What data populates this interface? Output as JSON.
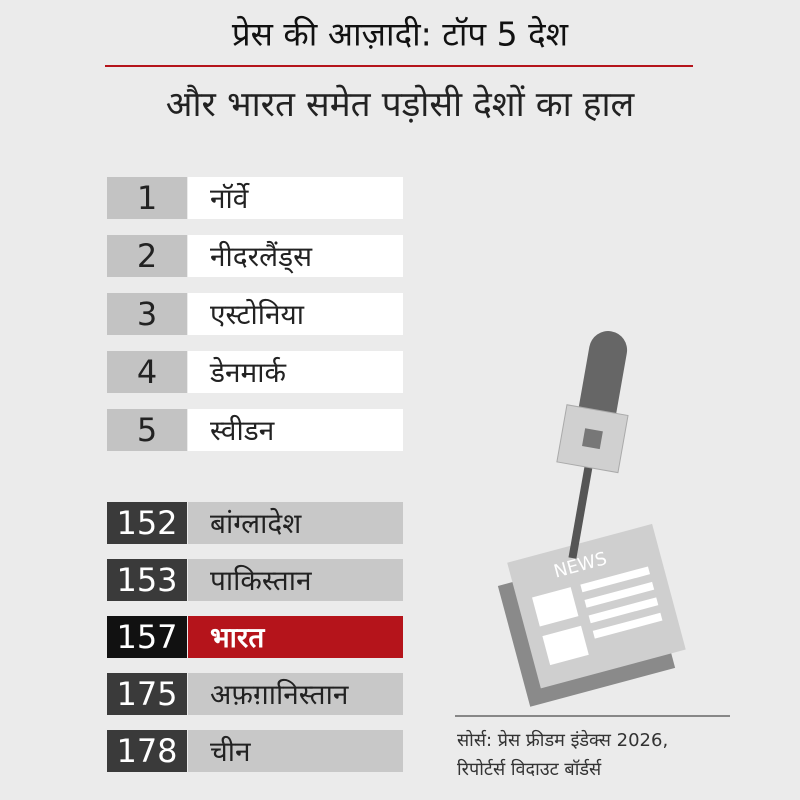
{
  "header": {
    "title": "प्रेस की आज़ादी: टॉप 5 देश",
    "subtitle": "और भारत समेत पड़ोसी देशों का हाल"
  },
  "top": [
    {
      "rank": "1",
      "name": "नॉर्वे"
    },
    {
      "rank": "2",
      "name": "नीदरलैंड्स"
    },
    {
      "rank": "3",
      "name": "एस्टोनिया"
    },
    {
      "rank": "4",
      "name": "डेनमार्क"
    },
    {
      "rank": "5",
      "name": "स्वीडन"
    }
  ],
  "neighbours": [
    {
      "rank": "152",
      "name": "बांग्लादेश"
    },
    {
      "rank": "153",
      "name": "पाकिस्तान"
    },
    {
      "rank": "157",
      "name": "भारत",
      "highlight": true
    },
    {
      "rank": "175",
      "name": "अफ़ग़ानिस्तान"
    },
    {
      "rank": "178",
      "name": "चीन"
    }
  ],
  "illustration": {
    "label": "NEWS"
  },
  "source": [
    "सोर्स: प्रेस फ्रीडम इंडेक्स 2026,",
    "रिपोर्टर्स विदाउट बॉर्डर्स"
  ]
}
